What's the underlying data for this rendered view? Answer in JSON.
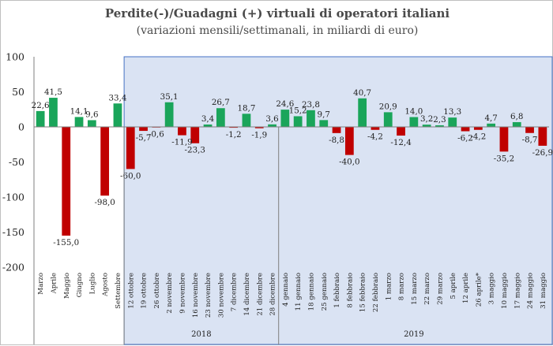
{
  "chart_data": {
    "type": "bar",
    "title": "Perdite(-)/Guadagni (+) virtuali di operatori italiani",
    "subtitle": "(variazioni mensili/settimanali, in miliardi di euro)",
    "ylim": [
      -200,
      100
    ],
    "yticks": [
      100,
      50,
      0,
      -50,
      -100,
      -150,
      -200
    ],
    "ytick_labels": [
      "100",
      "50",
      "0",
      "-50",
      "-100",
      "-150",
      "-200"
    ],
    "categories": [
      "Marzo",
      "Aprile",
      "Maggio",
      "Giugno",
      "Luglio",
      "Agosto",
      "Settembre",
      "12 ottobre",
      "19 ottobre",
      "26 ottobre",
      "2 novembre",
      "9 novembre",
      "16 novembre",
      "23 novembre",
      "30 novembre",
      "7 dicembre",
      "14 dicembre",
      "21 dicembre",
      "28 dicembre",
      "4 gennaio",
      "11 gennaio",
      "18 gennaio",
      "25 gennaio",
      "1 febbraio",
      "8 febbraio",
      "15 febbraio",
      "22 febbraio",
      "1 marzo",
      "8 marzo",
      "15 marzo",
      "22 marzo",
      "29 marzo",
      "5 aprile",
      "12 aprile",
      "26 aprile*",
      "3 maggio",
      "10 maggio",
      "17 maggio",
      "24 maggio",
      "31 maggio"
    ],
    "values": [
      22.6,
      41.5,
      -155.0,
      14.1,
      9.6,
      -98.0,
      33.4,
      -60.0,
      -5.7,
      -0.6,
      35.1,
      -11.9,
      -23.3,
      3.4,
      26.7,
      -1.2,
      18.7,
      -1.9,
      3.6,
      24.6,
      15.2,
      23.8,
      9.7,
      -8.8,
      -40.0,
      40.7,
      -4.2,
      20.9,
      -12.4,
      14.0,
      3.2,
      2.3,
      13.3,
      -6.2,
      -4.2,
      4.7,
      -35.2,
      6.8,
      -8.7,
      -26.9
    ],
    "value_labels": [
      "22,6",
      "41,5",
      "-155,0",
      "14,1",
      "9,6",
      "-98,0",
      "33,4",
      "-60,0",
      "-5,7",
      "-0,6",
      "35,1",
      "-11,9",
      "-23,3",
      "3,4",
      "26,7",
      "-1,2",
      "18,7",
      "-1,9",
      "3,6",
      "24,6",
      "15,2",
      "23,8",
      "9,7",
      "-8,8",
      "-40,0",
      "40,7",
      "-4,2",
      "20,9",
      "-12,4",
      "14,0",
      "3,2",
      "2,3",
      "13,3",
      "-6,2",
      "-4,2",
      "4,7",
      "-35,2",
      "6,8",
      "-8,7",
      "-26,9"
    ],
    "groups": [
      {
        "label": "",
        "from": 0,
        "to": 6
      },
      {
        "label": "2018",
        "from": 7,
        "to": 18
      },
      {
        "label": "2019",
        "from": 19,
        "to": 39
      }
    ],
    "shaded_from_index": 7,
    "colors": {
      "positive": "#1aa55a",
      "negative": "#c00000",
      "shade": "#dae3f3",
      "shade_border": "#4472c4",
      "grid": "#d9d9d9"
    },
    "grid": false,
    "legend": "none"
  }
}
